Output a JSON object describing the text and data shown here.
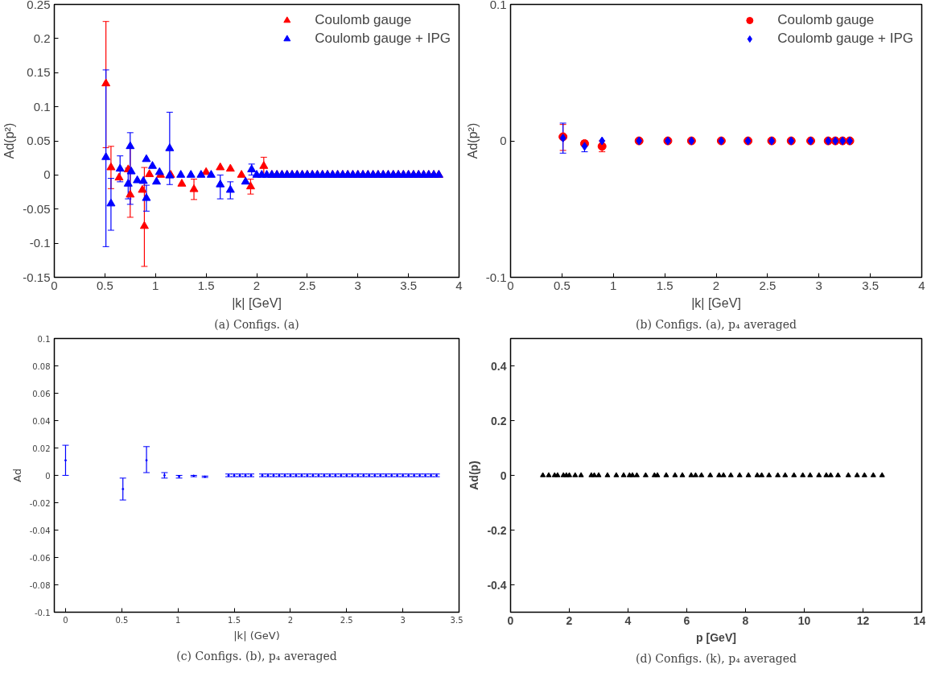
{
  "chart_data": [
    {
      "type": "scatter",
      "xlabel": "|k| [GeV]",
      "ylabel": "Ad(p²)",
      "annotations": [
        "(a) Configs. (a)"
      ],
      "xlim": [
        0,
        4
      ],
      "ylim": [
        -0.15,
        0.25
      ],
      "xticks": [
        0,
        0.5,
        1,
        1.5,
        2,
        2.5,
        3,
        3.5,
        4
      ],
      "yticks": [
        -0.15,
        -0.1,
        -0.05,
        0,
        0.05,
        0.1,
        0.15,
        0.2,
        0.25
      ],
      "legend": "top right",
      "marker": "triangle",
      "grid": false,
      "series": [
        {
          "name": "Coulomb gauge",
          "color": "#ff0000",
          "x": [
            0.51,
            0.56,
            0.64,
            0.73,
            0.75,
            0.87,
            0.89,
            0.94,
            1.05,
            1.15,
            1.26,
            1.38,
            1.5,
            1.64,
            1.74,
            1.85,
            1.94,
            2.07,
            2.15,
            2.2,
            2.25,
            2.3,
            2.35,
            2.4,
            2.45,
            2.5,
            2.55,
            2.6,
            2.65,
            2.7,
            2.75,
            2.8,
            2.85,
            2.9,
            2.95,
            3.0,
            3.05,
            3.1,
            3.15,
            3.2,
            3.25,
            3.3,
            3.35,
            3.4,
            3.45,
            3.5,
            3.55,
            3.6,
            3.65,
            3.7,
            3.75,
            3.8
          ],
          "values": [
            0.134,
            0.011,
            -0.004,
            0.008,
            -0.029,
            -0.022,
            -0.075,
            0.001,
            0,
            0,
            -0.013,
            -0.021,
            0.004,
            0.011,
            0.009,
            0,
            -0.017,
            0.013,
            0,
            0,
            0,
            0,
            0,
            0,
            0,
            0,
            0,
            0,
            0,
            0,
            0,
            0,
            0,
            0,
            0,
            0,
            0,
            0,
            0,
            0,
            0,
            0,
            0,
            0,
            0,
            0,
            0,
            0,
            0,
            0,
            0,
            0
          ],
          "errors": [
            [
              0.04,
              0.225
            ],
            [
              -0.02,
              0.042
            ],
            null,
            null,
            [
              -0.062,
              0.039
            ],
            null,
            [
              -0.134,
              0.011
            ],
            null,
            null,
            null,
            null,
            [
              -0.036,
              -0.006
            ],
            null,
            null,
            null,
            null,
            [
              -0.028,
              -0.006
            ],
            [
              0.0,
              0.026
            ],
            null,
            null,
            null,
            null,
            null,
            null,
            null,
            null,
            null,
            null,
            null,
            null,
            null,
            null,
            null,
            null,
            null,
            null,
            null,
            null,
            null,
            null,
            null,
            null,
            null,
            null,
            null,
            null,
            null,
            null,
            null,
            null,
            null,
            null
          ]
        },
        {
          "name": "Coulomb gauge + IPG",
          "color": "#0000ff",
          "x": [
            0.51,
            0.56,
            0.65,
            0.73,
            0.75,
            0.76,
            0.82,
            0.88,
            0.91,
            0.91,
            0.97,
            1.01,
            1.04,
            1.14,
            1.14,
            1.25,
            1.35,
            1.45,
            1.55,
            1.64,
            1.74,
            1.89,
            1.95,
            2.0,
            2.05,
            2.1,
            2.15,
            2.2,
            2.25,
            2.3,
            2.35,
            2.4,
            2.45,
            2.5,
            2.55,
            2.6,
            2.65,
            2.7,
            2.75,
            2.8,
            2.85,
            2.9,
            2.95,
            3.0,
            3.05,
            3.1,
            3.15,
            3.2,
            3.25,
            3.3,
            3.35,
            3.4,
            3.45,
            3.5,
            3.55,
            3.6,
            3.65,
            3.7,
            3.75,
            3.8
          ],
          "values": [
            0.026,
            -0.042,
            0.009,
            -0.013,
            0.042,
            0.005,
            -0.008,
            -0.009,
            0.023,
            -0.034,
            0.013,
            -0.01,
            0.004,
            0.039,
            -0.001,
            0,
            0,
            0,
            0,
            -0.014,
            -0.022,
            -0.01,
            0.008,
            0,
            0,
            0,
            0,
            0,
            0,
            0,
            0,
            0,
            0,
            0,
            0,
            0,
            0,
            0,
            0,
            0,
            0,
            0,
            0,
            0,
            0,
            0,
            0,
            0,
            0,
            0,
            0,
            0,
            0,
            0,
            0,
            0,
            0,
            0,
            0,
            0
          ],
          "errors": [
            [
              -0.105,
              0.154
            ],
            [
              -0.081,
              -0.005
            ],
            [
              -0.01,
              0.028
            ],
            [
              -0.035,
              0.01
            ],
            [
              -0.043,
              0.062
            ],
            null,
            null,
            null,
            null,
            [
              -0.053,
              -0.015
            ],
            null,
            null,
            null,
            [
              -0.014,
              0.092
            ],
            null,
            null,
            null,
            null,
            null,
            [
              -0.035,
              0.0
            ],
            [
              -0.035,
              -0.01
            ],
            null,
            [
              0.0,
              0.016
            ],
            null,
            null,
            null,
            null,
            null,
            null,
            null,
            null,
            null,
            null,
            null,
            null,
            null,
            null,
            null,
            null,
            null,
            null,
            null,
            null,
            null,
            null,
            null,
            null,
            null,
            null,
            null,
            null,
            null,
            null,
            null,
            null,
            null,
            null,
            null,
            null,
            null
          ]
        }
      ]
    },
    {
      "type": "scatter",
      "xlabel": "|k| [GeV]",
      "ylabel": "Ad(p²)",
      "annotations": [
        "(b) Configs. (a), p₄ averaged"
      ],
      "xlim": [
        0,
        4
      ],
      "ylim": [
        -0.1,
        0.1
      ],
      "xticks": [
        0,
        0.5,
        1,
        1.5,
        2,
        2.5,
        3,
        3.5,
        4
      ],
      "yticks": [
        -0.1,
        0,
        0.1
      ],
      "legend": "top right",
      "grid": false,
      "series": [
        {
          "name": "Coulomb gauge",
          "color": "#ff0000",
          "marker": "circle",
          "x": [
            0.51,
            0.72,
            0.89,
            1.25,
            1.53,
            1.76,
            2.05,
            2.31,
            2.54,
            2.73,
            2.92,
            3.09,
            3.16,
            3.23,
            3.3
          ],
          "values": [
            0.003,
            -0.002,
            -0.004,
            0,
            0,
            0,
            0,
            0,
            0,
            0,
            0,
            0,
            0,
            0,
            0
          ],
          "errors": [
            [
              -0.007,
              0.012
            ],
            null,
            [
              -0.008,
              0.0
            ],
            null,
            null,
            null,
            null,
            null,
            null,
            null,
            null,
            null,
            null,
            null,
            null
          ]
        },
        {
          "name": "Coulomb gauge + IPG",
          "color": "#0000ff",
          "marker": "diamond",
          "x": [
            0.51,
            0.72,
            0.89,
            1.25,
            1.53,
            1.76,
            2.05,
            2.31,
            2.54,
            2.73,
            2.92,
            3.09,
            3.16,
            3.23,
            3.3
          ],
          "values": [
            0.002,
            -0.004,
            0,
            0,
            0,
            0,
            0,
            0,
            0,
            0,
            0,
            0,
            0,
            0,
            0
          ],
          "errors": [
            [
              -0.009,
              0.013
            ],
            [
              -0.008,
              0.0
            ],
            null,
            null,
            null,
            null,
            null,
            null,
            null,
            null,
            null,
            null,
            null,
            null,
            null
          ]
        }
      ]
    },
    {
      "type": "scatter",
      "xlabel": "|k| (GeV)",
      "ylabel": "Ad",
      "annotations": [
        "(c) Configs. (b), p₄ averaged"
      ],
      "xlim": [
        -0.1,
        3.5
      ],
      "ylim": [
        -0.1,
        0.1
      ],
      "xticks": [
        0,
        0.5,
        1,
        1.5,
        2,
        2.5,
        3,
        3.5
      ],
      "yticks": [
        -0.1,
        -0.08,
        -0.06,
        -0.04,
        -0.02,
        0,
        0.02,
        0.04,
        0.06,
        0.08,
        0.1
      ],
      "marker": "none",
      "grid": false,
      "series": [
        {
          "color": "#0000ff",
          "x": [
            0,
            0.51,
            0.72,
            0.88,
            1.01,
            1.14,
            1.24,
            1.45,
            1.5,
            1.55,
            1.6,
            1.65,
            1.75,
            1.8,
            1.85,
            1.9,
            1.95,
            2.0,
            2.05,
            2.1,
            2.15,
            2.2,
            2.25,
            2.3,
            2.35,
            2.4,
            2.45,
            2.5,
            2.55,
            2.6,
            2.65,
            2.7,
            2.75,
            2.8,
            2.85,
            2.9,
            2.95,
            3.0,
            3.05,
            3.1,
            3.15,
            3.2,
            3.25,
            3.3
          ],
          "values": [
            0.011,
            -0.01,
            0.011,
            0,
            -0.0008,
            -0.0003,
            -0.001,
            0,
            0,
            0,
            0,
            0,
            0,
            0,
            0,
            0,
            0,
            0,
            0,
            0,
            0,
            0,
            0,
            0,
            0,
            0,
            0,
            0,
            0,
            0,
            0,
            0,
            0,
            0,
            0,
            0,
            0,
            0,
            0,
            0,
            0,
            0,
            0,
            0
          ],
          "errors": [
            [
              0.0,
              0.022
            ],
            [
              -0.018,
              -0.002
            ],
            [
              0.002,
              0.021
            ],
            [
              -0.002,
              0.002
            ],
            [
              -0.002,
              0.0
            ],
            [
              -0.001,
              0.0
            ],
            [
              -0.0015,
              -0.0005
            ],
            [
              -0.001,
              0.001
            ],
            [
              -0.001,
              0.001
            ],
            [
              -0.001,
              0.001
            ],
            [
              -0.001,
              0.001
            ],
            [
              -0.001,
              0.001
            ],
            [
              -0.001,
              0.001
            ],
            [
              -0.001,
              0.001
            ],
            [
              -0.001,
              0.001
            ],
            [
              -0.001,
              0.001
            ],
            [
              -0.001,
              0.001
            ],
            [
              -0.001,
              0.001
            ],
            [
              -0.001,
              0.001
            ],
            [
              -0.001,
              0.001
            ],
            [
              -0.001,
              0.001
            ],
            [
              -0.001,
              0.001
            ],
            [
              -0.001,
              0.001
            ],
            [
              -0.001,
              0.001
            ],
            [
              -0.001,
              0.001
            ],
            [
              -0.001,
              0.001
            ],
            [
              -0.001,
              0.001
            ],
            [
              -0.001,
              0.001
            ],
            [
              -0.001,
              0.001
            ],
            [
              -0.001,
              0.001
            ],
            [
              -0.001,
              0.001
            ],
            [
              -0.001,
              0.001
            ],
            [
              -0.001,
              0.001
            ],
            [
              -0.001,
              0.001
            ],
            [
              -0.001,
              0.001
            ],
            [
              -0.001,
              0.001
            ],
            [
              -0.001,
              0.001
            ],
            [
              -0.001,
              0.001
            ],
            [
              -0.001,
              0.001
            ],
            [
              -0.001,
              0.001
            ],
            [
              -0.001,
              0.001
            ],
            [
              -0.001,
              0.001
            ],
            [
              -0.001,
              0.001
            ],
            [
              -0.001,
              0.001
            ]
          ]
        }
      ]
    },
    {
      "type": "scatter",
      "xlabel": "p [GeV]",
      "ylabel": "Ad(p)",
      "annotations": [
        "(d) Configs. (k), p₄ averaged"
      ],
      "xlim": [
        0,
        14
      ],
      "ylim": [
        -0.5,
        0.5
      ],
      "xticks": [
        0,
        2,
        4,
        6,
        8,
        10,
        12,
        14
      ],
      "yticks": [
        -0.4,
        -0.2,
        0,
        0.2,
        0.4
      ],
      "marker": "triangle",
      "grid": false,
      "series": [
        {
          "color": "#000000",
          "x": [
            1.1,
            1.3,
            1.5,
            1.6,
            1.8,
            1.9,
            2.0,
            2.2,
            2.4,
            2.75,
            2.85,
            3.0,
            3.3,
            3.6,
            3.85,
            4.05,
            4.15,
            4.3,
            4.6,
            4.9,
            5.0,
            5.3,
            5.6,
            5.85,
            6.15,
            6.3,
            6.5,
            6.8,
            7.1,
            7.25,
            7.5,
            7.8,
            8.1,
            8.4,
            8.55,
            8.8,
            9.1,
            9.35,
            9.65,
            9.95,
            10.2,
            10.5,
            10.75,
            10.9,
            11.15,
            11.5,
            11.8,
            12.05,
            12.35,
            12.65
          ],
          "values": [
            0,
            0,
            0,
            0,
            0,
            0,
            0,
            0,
            0,
            0,
            0,
            0,
            0,
            0,
            0,
            0,
            0,
            0,
            0,
            0,
            0,
            0,
            0,
            0,
            0,
            0,
            0,
            0,
            0,
            0,
            0,
            0,
            0,
            0,
            0,
            0,
            0,
            0,
            0,
            0,
            0,
            0,
            0,
            0,
            0,
            0,
            0,
            0,
            0,
            0
          ]
        }
      ]
    }
  ]
}
